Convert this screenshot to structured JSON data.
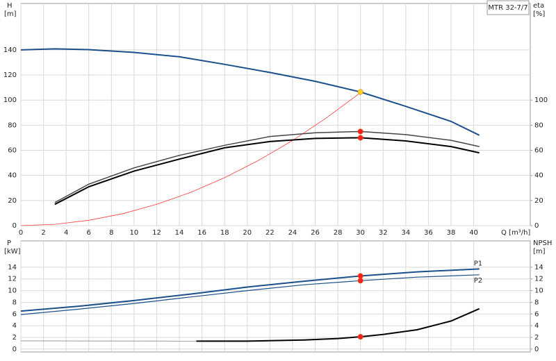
{
  "chart_data": [
    {
      "type": "line",
      "annotation": "MTR 32-7/7",
      "ylabel": "H",
      "yunit": "[m]",
      "y2label": "eta",
      "y2unit": "[%]",
      "xlabel": "Q [m³/h]",
      "xlim": [
        0,
        45
      ],
      "xticks": [
        0,
        2,
        4,
        6,
        8,
        10,
        12,
        14,
        16,
        18,
        20,
        22,
        24,
        26,
        28,
        30,
        32,
        34,
        36,
        38,
        40
      ],
      "ylim": [
        0,
        177
      ],
      "yticks": [
        0,
        20,
        40,
        60,
        80,
        100,
        120,
        140
      ],
      "y2lim": [
        0,
        177
      ],
      "y2ticks": [
        0,
        20,
        40,
        60,
        80,
        100
      ],
      "grid": true,
      "series": [
        {
          "color": "#ff3b3b",
          "width": 0.8,
          "x": [
            0,
            3,
            6,
            9,
            12,
            15,
            18,
            21,
            24,
            27,
            30
          ],
          "values": [
            0,
            1.06,
            4.24,
            9.5,
            17,
            26.5,
            38.2,
            52,
            67.8,
            85.9,
            106
          ]
        },
        {
          "color": "#444444",
          "width": 1.5,
          "axis": "y2",
          "x": [
            3,
            6,
            10,
            14,
            18,
            22,
            26,
            30,
            34,
            38,
            40.5
          ],
          "values": [
            18.5,
            33,
            46,
            56,
            64,
            71,
            74,
            75,
            72.5,
            68,
            63
          ]
        },
        {
          "color": "#000000",
          "width": 2,
          "axis": "y2",
          "x": [
            3,
            6,
            10,
            14,
            18,
            22,
            26,
            30,
            34,
            38,
            40.5
          ],
          "values": [
            17,
            31,
            43.5,
            53,
            62,
            67,
            69.5,
            70,
            67.5,
            63,
            58
          ]
        },
        {
          "color": "#1a4f8a",
          "width": 2,
          "x": [
            0,
            3,
            6,
            10,
            14,
            18,
            22,
            26,
            30,
            34,
            38,
            40.5
          ],
          "values": [
            140,
            140.8,
            140.2,
            138,
            134.5,
            128.5,
            122,
            115,
            106.5,
            95,
            83,
            72
          ]
        },
        {
          "color": "#ffd21f",
          "marker": true,
          "x": [
            30
          ],
          "values": [
            106.5
          ]
        },
        {
          "color": "#ff2020",
          "marker": true,
          "axis": "y2",
          "x": [
            30,
            30
          ],
          "values": [
            75,
            70
          ]
        }
      ]
    },
    {
      "type": "line",
      "ylabel": "P",
      "yunit": "[kW]",
      "y2label": "NPSH",
      "y2unit": "[m]",
      "xlim": [
        0,
        45
      ],
      "xticks": [
        0,
        2,
        4,
        6,
        8,
        10,
        12,
        14,
        16,
        18,
        20,
        22,
        24,
        26,
        28,
        30,
        32,
        34,
        36,
        38,
        40
      ],
      "ylim": [
        -0.5,
        18.5
      ],
      "yticks": [
        0,
        2,
        4,
        6,
        8,
        10,
        12,
        14
      ],
      "y2lim": [
        -0.5,
        18.5
      ],
      "y2ticks": [
        0,
        2,
        4,
        6,
        8,
        10,
        12,
        14
      ],
      "grid": true,
      "series": [
        {
          "name": "P1",
          "color": "#1a4f8a",
          "width": 2,
          "x": [
            0,
            5,
            10,
            15,
            20,
            25,
            30,
            35,
            40.5
          ],
          "values": [
            6.5,
            7.3,
            8.3,
            9.4,
            10.6,
            11.6,
            12.5,
            13.2,
            13.7
          ]
        },
        {
          "name": "P2",
          "color": "#1a4f8a",
          "width": 1.2,
          "x": [
            0,
            5,
            10,
            15,
            20,
            25,
            30,
            35,
            40.5
          ],
          "values": [
            5.9,
            6.8,
            7.8,
            8.9,
            10.0,
            11.0,
            11.7,
            12.3,
            12.7
          ]
        },
        {
          "color": "#999999",
          "width": 1,
          "axis": "y2",
          "x": [
            0,
            15.5
          ],
          "values": [
            1.4,
            1.35
          ]
        },
        {
          "color": "#000000",
          "width": 2,
          "axis": "y2",
          "x": [
            15.5,
            20,
            25,
            28,
            30,
            32,
            35,
            38,
            40.5
          ],
          "values": [
            1.35,
            1.35,
            1.55,
            1.8,
            2.1,
            2.5,
            3.3,
            4.8,
            6.9
          ]
        },
        {
          "color": "#ff2020",
          "marker": true,
          "x": [
            30,
            30
          ],
          "values": [
            12.5,
            11.7
          ]
        },
        {
          "color": "#ff2020",
          "marker": true,
          "axis": "y2",
          "x": [
            30
          ],
          "values": [
            2.1
          ]
        }
      ]
    }
  ]
}
